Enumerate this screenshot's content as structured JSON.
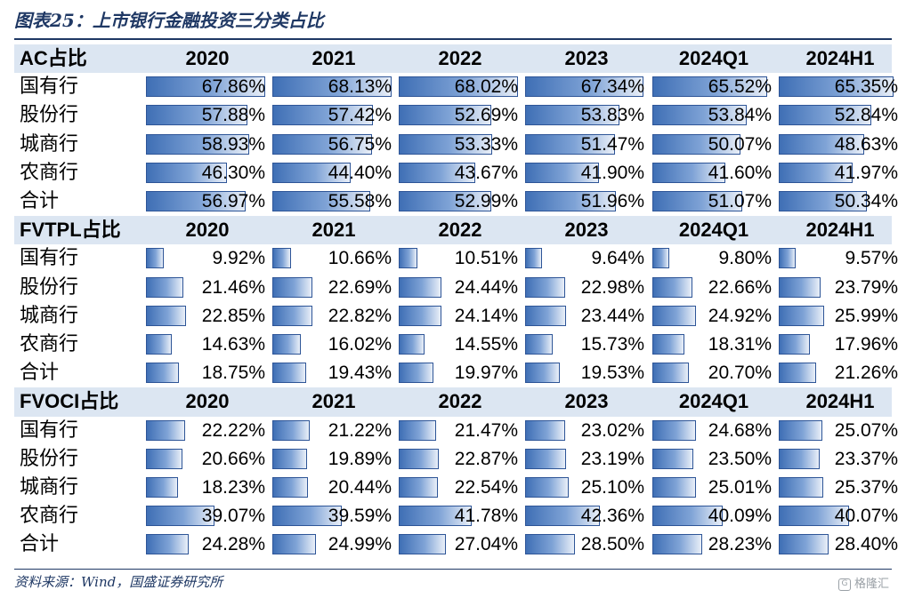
{
  "title": "图表25：上市银行金融投资三分类占比",
  "source": "资料来源：Wind，国盛证券研究所",
  "watermark": "格隆汇",
  "columns": [
    "2020",
    "2021",
    "2022",
    "2023",
    "2024Q1",
    "2024H1"
  ],
  "colors": {
    "title": "#1f3864",
    "header_bg": "#dce6f2",
    "bar_dark": "#3f6fb5",
    "bar_light": "#e9eff8"
  },
  "sections": [
    {
      "header": "AC占比",
      "rows": [
        {
          "label": "国有行",
          "values": [
            "67.86%",
            "68.13%",
            "68.02%",
            "67.34%",
            "65.52%",
            "65.35%"
          ]
        },
        {
          "label": "股份行",
          "values": [
            "57.88%",
            "57.42%",
            "52.69%",
            "53.83%",
            "53.84%",
            "52.84%"
          ]
        },
        {
          "label": "城商行",
          "values": [
            "58.93%",
            "56.75%",
            "53.33%",
            "51.47%",
            "50.07%",
            "48.63%"
          ]
        },
        {
          "label": "农商行",
          "values": [
            "46.30%",
            "44.40%",
            "43.67%",
            "41.90%",
            "41.60%",
            "41.97%"
          ]
        },
        {
          "label": "合计",
          "values": [
            "56.97%",
            "55.58%",
            "52.99%",
            "51.96%",
            "51.07%",
            "50.34%"
          ]
        }
      ]
    },
    {
      "header": "FVTPL占比",
      "rows": [
        {
          "label": "国有行",
          "values": [
            "9.92%",
            "10.66%",
            "10.51%",
            "9.64%",
            "9.80%",
            "9.57%"
          ]
        },
        {
          "label": "股份行",
          "values": [
            "21.46%",
            "22.69%",
            "24.44%",
            "22.98%",
            "22.66%",
            "23.79%"
          ]
        },
        {
          "label": "城商行",
          "values": [
            "22.85%",
            "22.82%",
            "24.14%",
            "23.44%",
            "24.92%",
            "25.99%"
          ]
        },
        {
          "label": "农商行",
          "values": [
            "14.63%",
            "16.02%",
            "14.55%",
            "15.73%",
            "18.31%",
            "17.96%"
          ]
        },
        {
          "label": "合计",
          "values": [
            "18.75%",
            "19.43%",
            "19.97%",
            "19.53%",
            "20.70%",
            "21.26%"
          ]
        }
      ]
    },
    {
      "header": "FVOCI占比",
      "rows": [
        {
          "label": "国有行",
          "values": [
            "22.22%",
            "21.22%",
            "21.47%",
            "23.02%",
            "24.68%",
            "25.07%"
          ]
        },
        {
          "label": "股份行",
          "values": [
            "20.66%",
            "19.89%",
            "22.87%",
            "23.19%",
            "23.50%",
            "23.37%"
          ]
        },
        {
          "label": "城商行",
          "values": [
            "18.23%",
            "20.44%",
            "22.54%",
            "25.10%",
            "25.01%",
            "25.37%"
          ]
        },
        {
          "label": "农商行",
          "values": [
            "39.07%",
            "39.59%",
            "41.78%",
            "42.36%",
            "40.09%",
            "40.07%"
          ]
        },
        {
          "label": "合计",
          "values": [
            "24.28%",
            "24.99%",
            "27.04%",
            "28.50%",
            "28.23%",
            "28.40%"
          ]
        }
      ]
    }
  ]
}
